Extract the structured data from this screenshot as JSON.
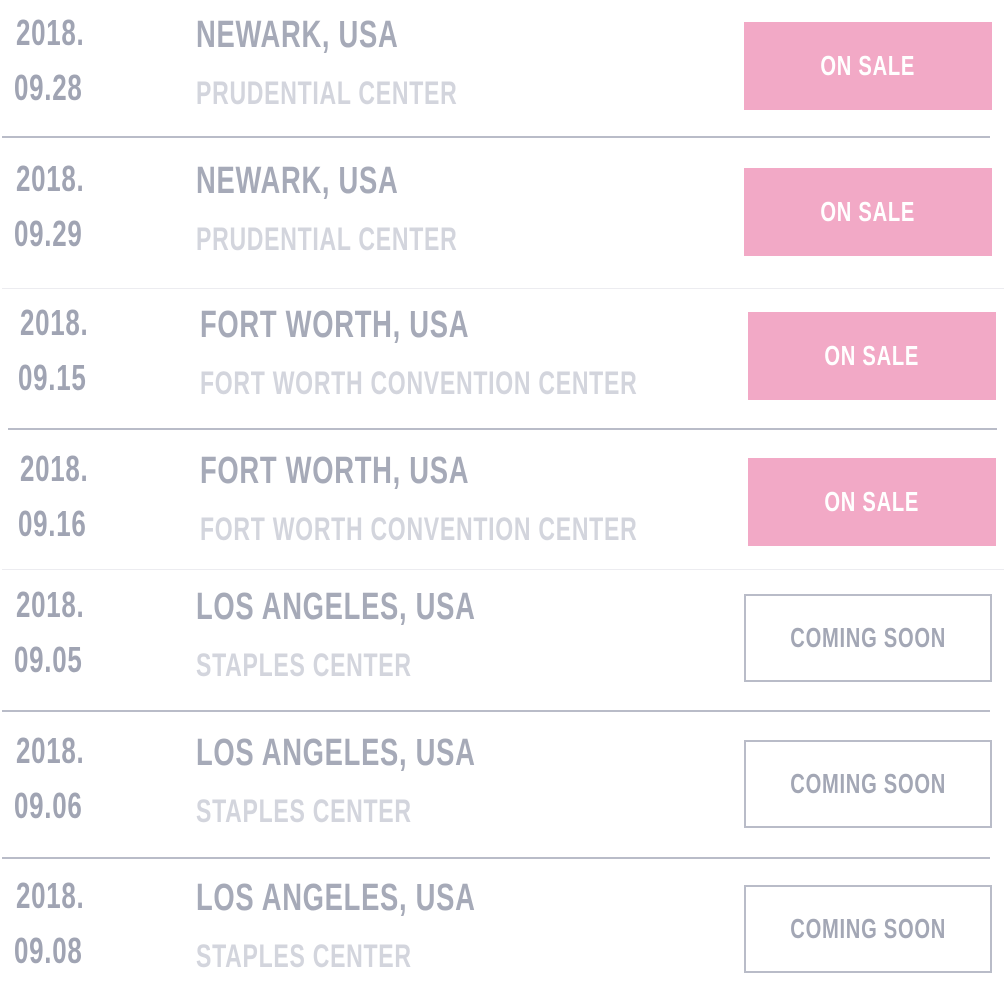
{
  "events": [
    {
      "year": "2018.",
      "date": "09.28",
      "city": "NEWARK, USA",
      "venue": "PRUDENTIAL CENTER",
      "status": "ON SALE"
    },
    {
      "year": "2018.",
      "date": "09.29",
      "city": "NEWARK, USA",
      "venue": "PRUDENTIAL CENTER",
      "status": "ON SALE"
    },
    {
      "year": "2018.",
      "date": "09.15",
      "city": "FORT WORTH, USA",
      "venue": "FORT WORTH CONVENTION CENTER",
      "status": "ON SALE"
    },
    {
      "year": "2018.",
      "date": "09.16",
      "city": "FORT WORTH, USA",
      "venue": "FORT WORTH CONVENTION CENTER",
      "status": "ON SALE"
    },
    {
      "year": "2018.",
      "date": "09.05",
      "city": "LOS ANGELES, USA",
      "venue": "STAPLES CENTER",
      "status": "COMING SOON"
    },
    {
      "year": "2018.",
      "date": "09.06",
      "city": "LOS ANGELES, USA",
      "venue": "STAPLES CENTER",
      "status": "COMING SOON"
    },
    {
      "year": "2018.",
      "date": "09.08",
      "city": "LOS ANGELES, USA",
      "venue": "STAPLES CENTER",
      "status": "COMING SOON"
    }
  ]
}
